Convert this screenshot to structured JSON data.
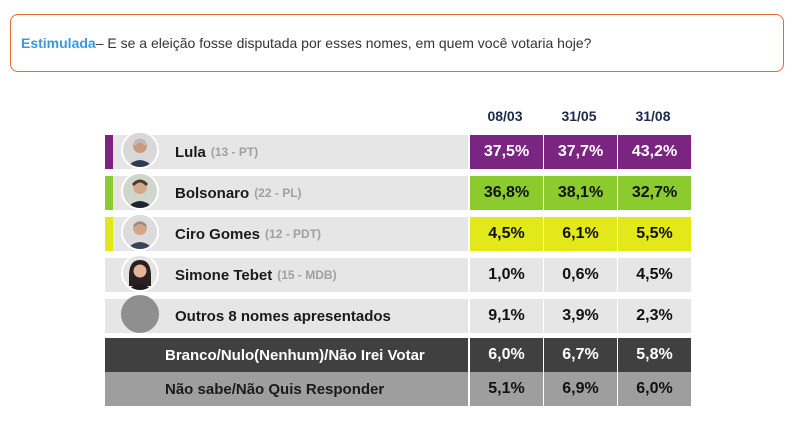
{
  "question": {
    "label": "Estimulada",
    "text": " – E se a eleição fosse disputada por esses nomes, em quem você votaria hoje?"
  },
  "chart_data": {
    "type": "table",
    "columns": [
      "08/03",
      "31/05",
      "31/08"
    ],
    "unit": "%",
    "rows": [
      {
        "name": "Lula",
        "party": "(13 - PT)",
        "values": [
          "37,5%",
          "37,7%",
          "43,2%"
        ],
        "color": "#7b2582"
      },
      {
        "name": "Bolsonaro",
        "party": "(22 - PL)",
        "values": [
          "36,8%",
          "38,1%",
          "32,7%"
        ],
        "color": "#8ccb2e"
      },
      {
        "name": "Ciro Gomes",
        "party": "(12 - PDT)",
        "values": [
          "4,5%",
          "6,1%",
          "5,5%"
        ],
        "color": "#e2e81a"
      },
      {
        "name": "Simone Tebet",
        "party": "(15 - MDB)",
        "values": [
          "1,0%",
          "0,6%",
          "4,5%"
        ],
        "color": "#e6e6e6"
      },
      {
        "name": "Outros 8 nomes apresentados",
        "party": "",
        "values": [
          "9,1%",
          "3,9%",
          "2,3%"
        ],
        "color": "#e6e6e6"
      },
      {
        "name": "Branco/Nulo(Nenhum)/Não Irei Votar",
        "party": "",
        "values": [
          "6,0%",
          "6,7%",
          "5,8%"
        ],
        "color": "#404040"
      },
      {
        "name": "Não sabe/Não Quis Responder",
        "party": "",
        "values": [
          "5,1%",
          "6,9%",
          "6,0%"
        ],
        "color": "#9e9e9e"
      }
    ]
  }
}
